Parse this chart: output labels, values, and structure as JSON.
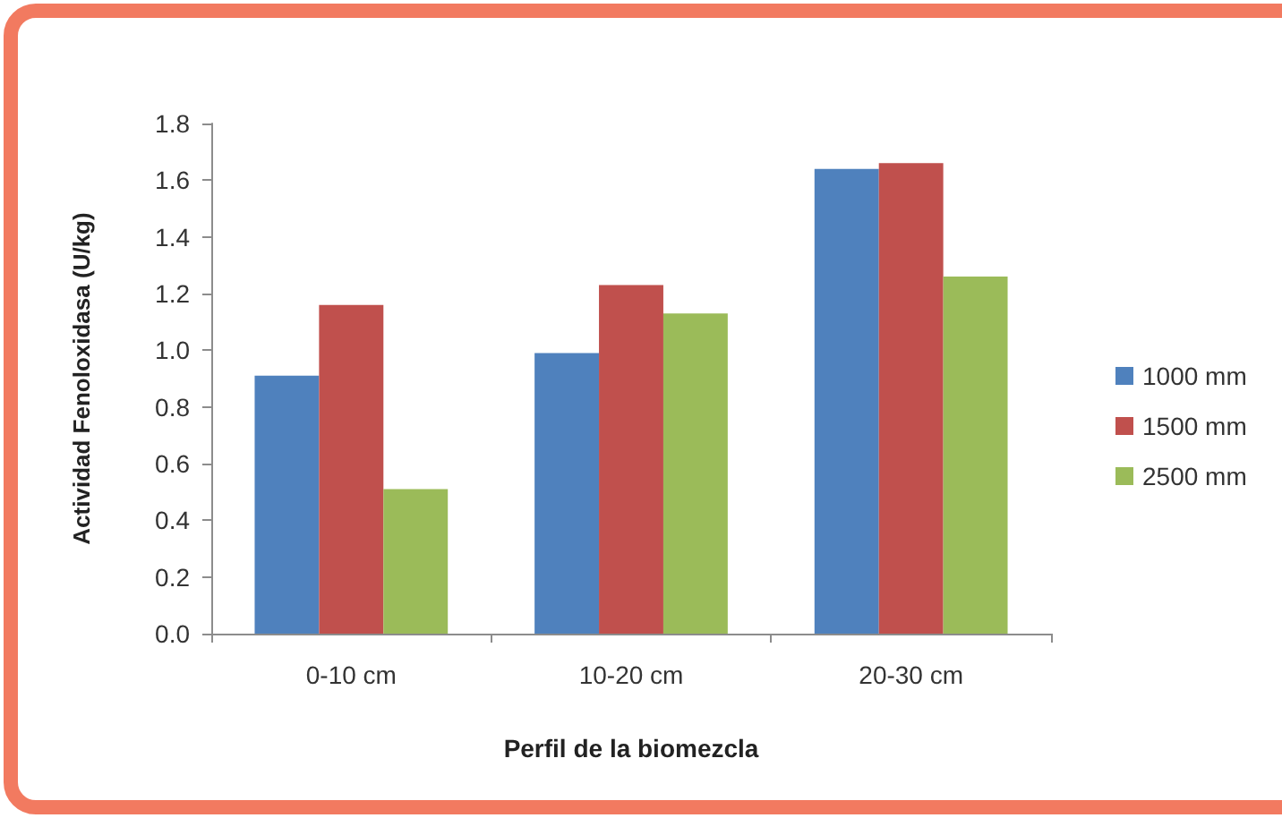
{
  "chart_data": {
    "type": "bar",
    "xlabel": "Perfil de la biomezcla",
    "ylabel": "Actividad Fenoloxidasa (U/kg)",
    "categories": [
      "0-10 cm",
      "10-20 cm",
      "20-30 cm"
    ],
    "series": [
      {
        "name": "1000 mm",
        "color": "#4f81bd",
        "values": [
          0.91,
          0.99,
          1.64
        ]
      },
      {
        "name": "1500 mm",
        "color": "#c0504d",
        "values": [
          1.16,
          1.23,
          1.66
        ]
      },
      {
        "name": "2500 mm",
        "color": "#9bbb59",
        "values": [
          0.51,
          1.13,
          1.26
        ]
      }
    ],
    "ylim": [
      0,
      1.8
    ],
    "yticks": [
      {
        "value": 0,
        "label": "0.0"
      },
      0.2,
      0.4,
      0.6,
      0.8,
      {
        "value": 1,
        "label": "1.0"
      },
      1.2,
      1.4,
      1.6,
      1.8
    ],
    "grid": false,
    "legend": "right"
  }
}
